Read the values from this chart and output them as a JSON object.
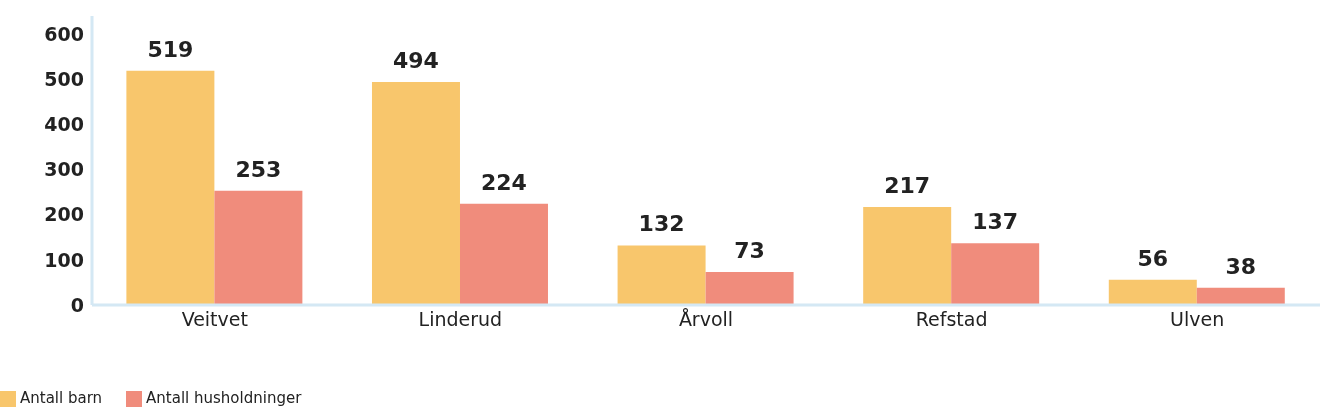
{
  "chart_data": {
    "type": "bar",
    "categories": [
      "Veitvet",
      "Linderud",
      "Årvoll",
      "Refstad",
      "Ulven"
    ],
    "series": [
      {
        "name": "Antall barn",
        "color": "#f8c66c",
        "values": [
          519,
          494,
          132,
          217,
          56
        ]
      },
      {
        "name": "Antall husholdninger",
        "color": "#f08c7c",
        "values": [
          253,
          224,
          73,
          137,
          38
        ]
      }
    ],
    "ylim": [
      0,
      640
    ],
    "yticks": [
      0,
      100,
      200,
      300,
      400,
      500,
      600
    ],
    "grid": false,
    "legend": "bottom left",
    "data_labels": true
  }
}
